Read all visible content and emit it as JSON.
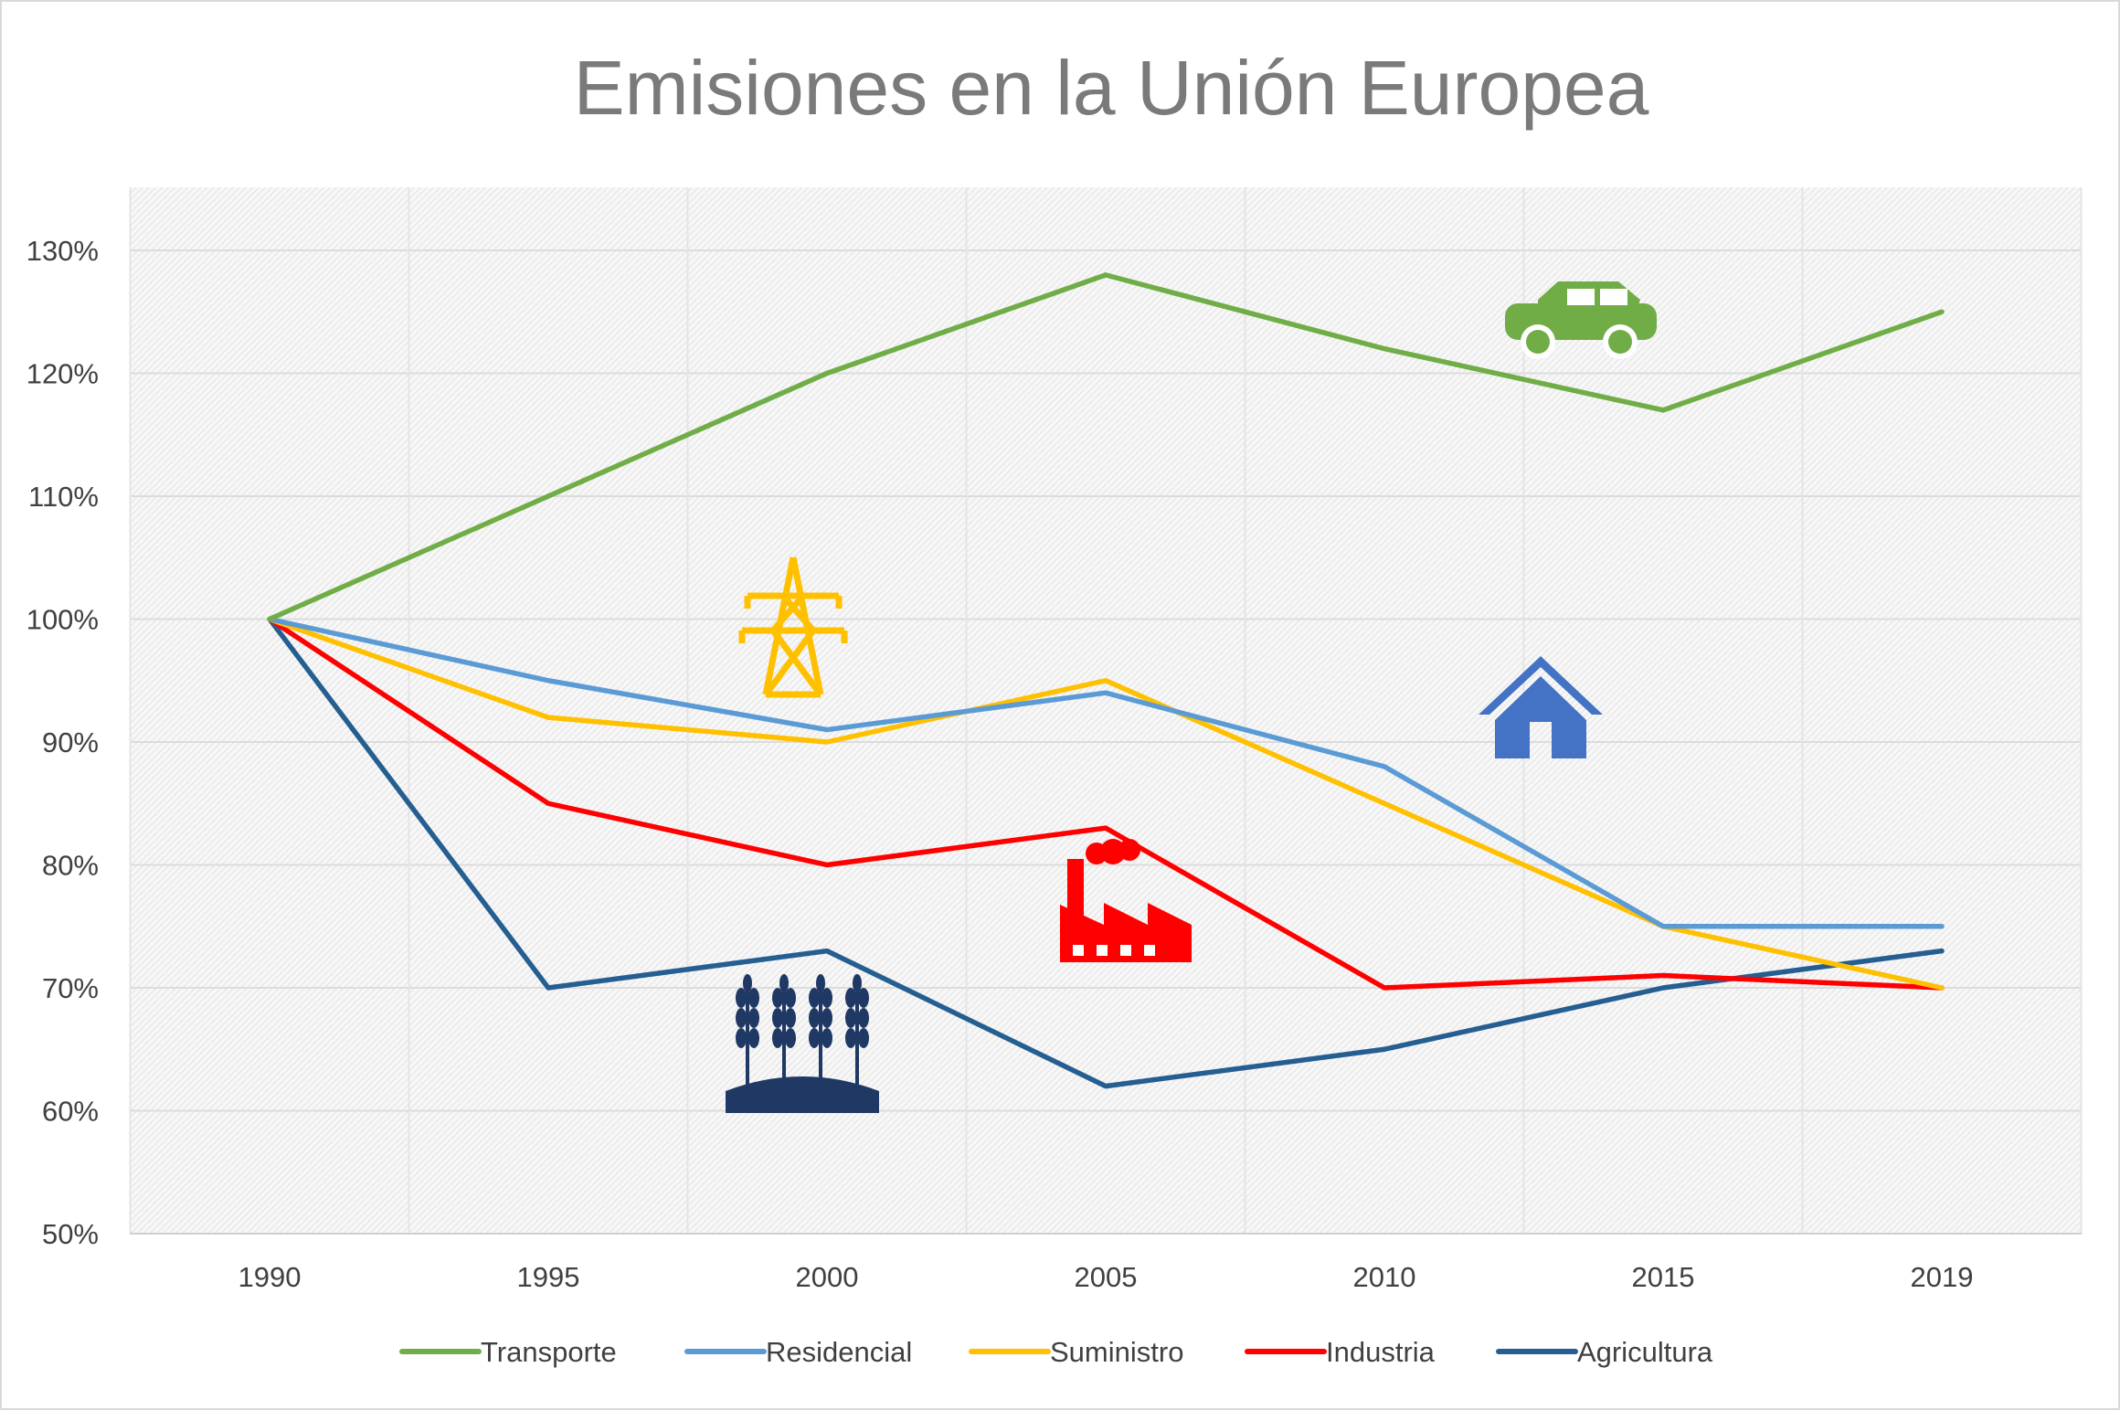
{
  "chart_data": {
    "type": "line",
    "title": "Emisiones en la Unión Europea",
    "categories": [
      "1990",
      "1995",
      "2000",
      "2005",
      "2010",
      "2015",
      "2019"
    ],
    "y_unit": "%",
    "ylim": [
      50,
      130
    ],
    "yticks": [
      50,
      60,
      70,
      80,
      90,
      100,
      110,
      120,
      130
    ],
    "ytick_labels": [
      "50%",
      "60%",
      "70%",
      "80%",
      "90%",
      "100%",
      "110%",
      "120%",
      "130%"
    ],
    "grid": true,
    "legend_position": "bottom",
    "series": [
      {
        "name": "Transporte",
        "color": "#70ad47",
        "icon": "car-icon",
        "values": [
          100,
          110,
          120,
          128,
          122,
          117,
          125
        ]
      },
      {
        "name": "Residencial",
        "color": "#5b9bd5",
        "icon": "house-icon",
        "values": [
          100,
          95,
          91,
          94,
          88,
          75,
          75
        ]
      },
      {
        "name": "Suministro",
        "color": "#ffc000",
        "icon": "power-tower-icon",
        "values": [
          100,
          92,
          90,
          95,
          85,
          75,
          70
        ]
      },
      {
        "name": "Industria",
        "color": "#ff0000",
        "icon": "factory-icon",
        "values": [
          100,
          85,
          80,
          83,
          70,
          71,
          70
        ]
      },
      {
        "name": "Agricultura",
        "color": "#255e91",
        "icon": "wheat-icon",
        "values": [
          100,
          70,
          73,
          62,
          65,
          70,
          73
        ]
      }
    ]
  }
}
